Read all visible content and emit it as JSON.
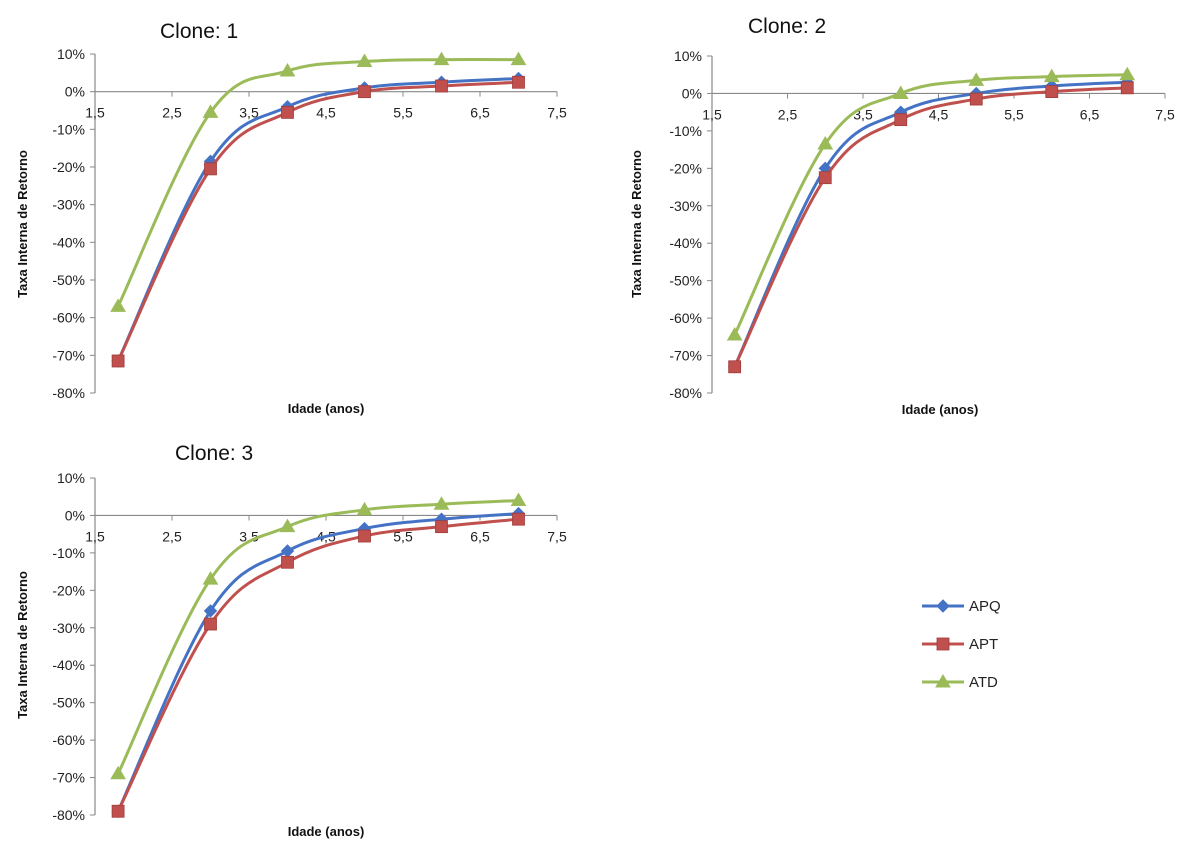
{
  "chart_data": [
    {
      "type": "line",
      "title": "Clone: 1",
      "xlabel": "Idade (anos)",
      "ylabel": "Taxa  Interna de Retorno",
      "xlim": [
        1.5,
        7.5
      ],
      "ylim": [
        -80,
        10
      ],
      "xticks": [
        "1,5",
        "2,5",
        "3,5",
        "4,5",
        "5,5",
        "6,5",
        "7,5"
      ],
      "yticks": [
        "10%",
        "0%",
        "-10%",
        "-20%",
        "-30%",
        "-40%",
        "-50%",
        "-60%",
        "-70%",
        "-80%"
      ],
      "x": [
        1.8,
        3,
        4,
        5,
        6,
        7
      ],
      "series": [
        {
          "name": "APQ",
          "values": [
            -71.5,
            -18.5,
            -4,
            1,
            2.5,
            3.5
          ]
        },
        {
          "name": "APT",
          "values": [
            -71.5,
            -20.5,
            -5.5,
            0,
            1.5,
            2.5
          ]
        },
        {
          "name": "ATD",
          "values": [
            -57,
            -5.5,
            5.5,
            8,
            8.5,
            8.5
          ]
        }
      ]
    },
    {
      "type": "line",
      "title": "Clone: 2",
      "xlabel": "Idade (anos)",
      "ylabel": "Taxa  Interna de Retorno",
      "xlim": [
        1.5,
        7.5
      ],
      "ylim": [
        -80,
        10
      ],
      "xticks": [
        "1,5",
        "2,5",
        "3,5",
        "4,5",
        "5,5",
        "6,5",
        "7,5"
      ],
      "yticks": [
        "10%",
        "0%",
        "-10%",
        "-20%",
        "-30%",
        "-40%",
        "-50%",
        "-60%",
        "-70%",
        "-80%"
      ],
      "x": [
        1.8,
        3,
        4,
        5,
        6,
        7
      ],
      "series": [
        {
          "name": "APQ",
          "values": [
            -73,
            -20,
            -5,
            0,
            2,
            3
          ]
        },
        {
          "name": "APT",
          "values": [
            -73,
            -22.5,
            -7,
            -1.5,
            0.5,
            1.5
          ]
        },
        {
          "name": "ATD",
          "values": [
            -64.5,
            -13.5,
            0,
            3.5,
            4.5,
            5
          ]
        }
      ]
    },
    {
      "type": "line",
      "title": "Clone: 3",
      "xlabel": "Idade (anos)",
      "ylabel": "Taxa  Interna de Retorno",
      "xlim": [
        1.5,
        7.5
      ],
      "ylim": [
        -80,
        10
      ],
      "xticks": [
        "1,5",
        "2,5",
        "3,5",
        "4,5",
        "5,5",
        "6,5",
        "7,5"
      ],
      "yticks": [
        "10%",
        "0%",
        "-10%",
        "-20%",
        "-30%",
        "-40%",
        "-50%",
        "-60%",
        "-70%",
        "-80%"
      ],
      "x": [
        1.8,
        3,
        4,
        5,
        6,
        7
      ],
      "series": [
        {
          "name": "APQ",
          "values": [
            -79,
            -25.5,
            -9.5,
            -3.5,
            -1,
            0.5
          ]
        },
        {
          "name": "APT",
          "values": [
            -79,
            -29,
            -12.5,
            -5.5,
            -3,
            -1
          ]
        },
        {
          "name": "ATD",
          "values": [
            -69,
            -17,
            -3,
            1.5,
            3,
            4
          ]
        }
      ]
    }
  ],
  "legend": {
    "placement": "right",
    "items": [
      {
        "name": "APQ",
        "color": "#4472c4",
        "marker": "diamond"
      },
      {
        "name": "APT",
        "color": "#c0504d",
        "marker": "square"
      },
      {
        "name": "ATD",
        "color": "#9bbb59",
        "marker": "triangle"
      }
    ]
  }
}
